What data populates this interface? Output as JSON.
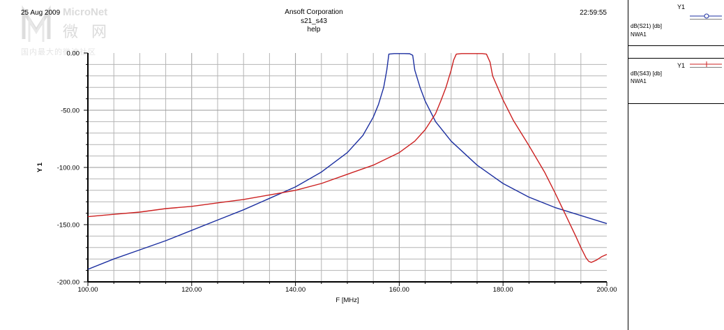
{
  "header": {
    "date": "25 Aug 2009",
    "company": "Ansoft Corporation",
    "plot_name": "s21_s43",
    "subtitle": "help",
    "time": "22:59:55"
  },
  "watermark": {
    "brand": "MicroNet",
    "brand_cn": "微 网",
    "slogan": "国内最大的微波社区"
  },
  "colors": {
    "s21": "#1c2fa0",
    "s43": "#cc2020",
    "grid": "#b4b4b4"
  },
  "legend": [
    {
      "axis": "Y1",
      "name": "dB(S21) [db]",
      "source": "NWA1",
      "color": "#1c2fa0",
      "marker": "circle"
    },
    {
      "axis": "Y1",
      "name": "dB(S43) [db]",
      "source": "NWA1",
      "color": "#cc2020",
      "marker": "plus"
    }
  ],
  "chart_data": {
    "type": "line",
    "title": "s21_s43",
    "xlabel": "F [MHz]",
    "ylabel": "Y 1",
    "xlim": [
      100,
      200
    ],
    "ylim": [
      -200,
      0
    ],
    "x_ticks": [
      "100.00",
      "120.00",
      "140.00",
      "160.00",
      "180.00",
      "200.00"
    ],
    "y_ticks": [
      "0.00",
      "-50.00",
      "-100.00",
      "-150.00",
      "-200.00"
    ],
    "grid": true,
    "legend_position": "right",
    "series": [
      {
        "name": "dB(S21) [db]",
        "x": [
          100,
          105,
          110,
          115,
          120,
          125,
          130,
          135,
          140,
          145,
          150,
          153,
          155,
          156,
          157,
          157.6,
          158,
          159,
          160,
          161,
          162,
          162.6,
          163,
          164,
          165,
          167,
          170,
          175,
          180,
          185,
          190,
          195,
          200
        ],
        "y": [
          -189,
          -180,
          -172,
          -164,
          -155,
          -146,
          -137,
          -127,
          -117,
          -104,
          -87,
          -72,
          -56,
          -45,
          -30,
          -15,
          -1,
          -0.5,
          -0.5,
          -0.5,
          -0.6,
          -2,
          -15,
          -30,
          -42,
          -60,
          -77,
          -98,
          -114,
          -126,
          -135,
          -142,
          -149
        ]
      },
      {
        "name": "dB(S43) [db]",
        "x": [
          100,
          105,
          110,
          115,
          120,
          125,
          130,
          135,
          140,
          145,
          150,
          155,
          160,
          163,
          165,
          167,
          168,
          169,
          170,
          170.5,
          171,
          172,
          174,
          176,
          176.8,
          177.5,
          178,
          180,
          182,
          185,
          188,
          190,
          192,
          194,
          195,
          196,
          196.5,
          197,
          198,
          199,
          200
        ],
        "y": [
          -143,
          -141,
          -139,
          -136,
          -134,
          -131,
          -128,
          -124,
          -120,
          -114,
          -106,
          -98,
          -87,
          -77,
          -67,
          -53,
          -42,
          -30,
          -15,
          -6,
          -1,
          -0.5,
          -0.5,
          -0.5,
          -1,
          -8,
          -20,
          -41,
          -59,
          -81,
          -104,
          -122,
          -141,
          -160,
          -170,
          -179,
          -182,
          -183,
          -181,
          -178,
          -176
        ]
      }
    ]
  }
}
